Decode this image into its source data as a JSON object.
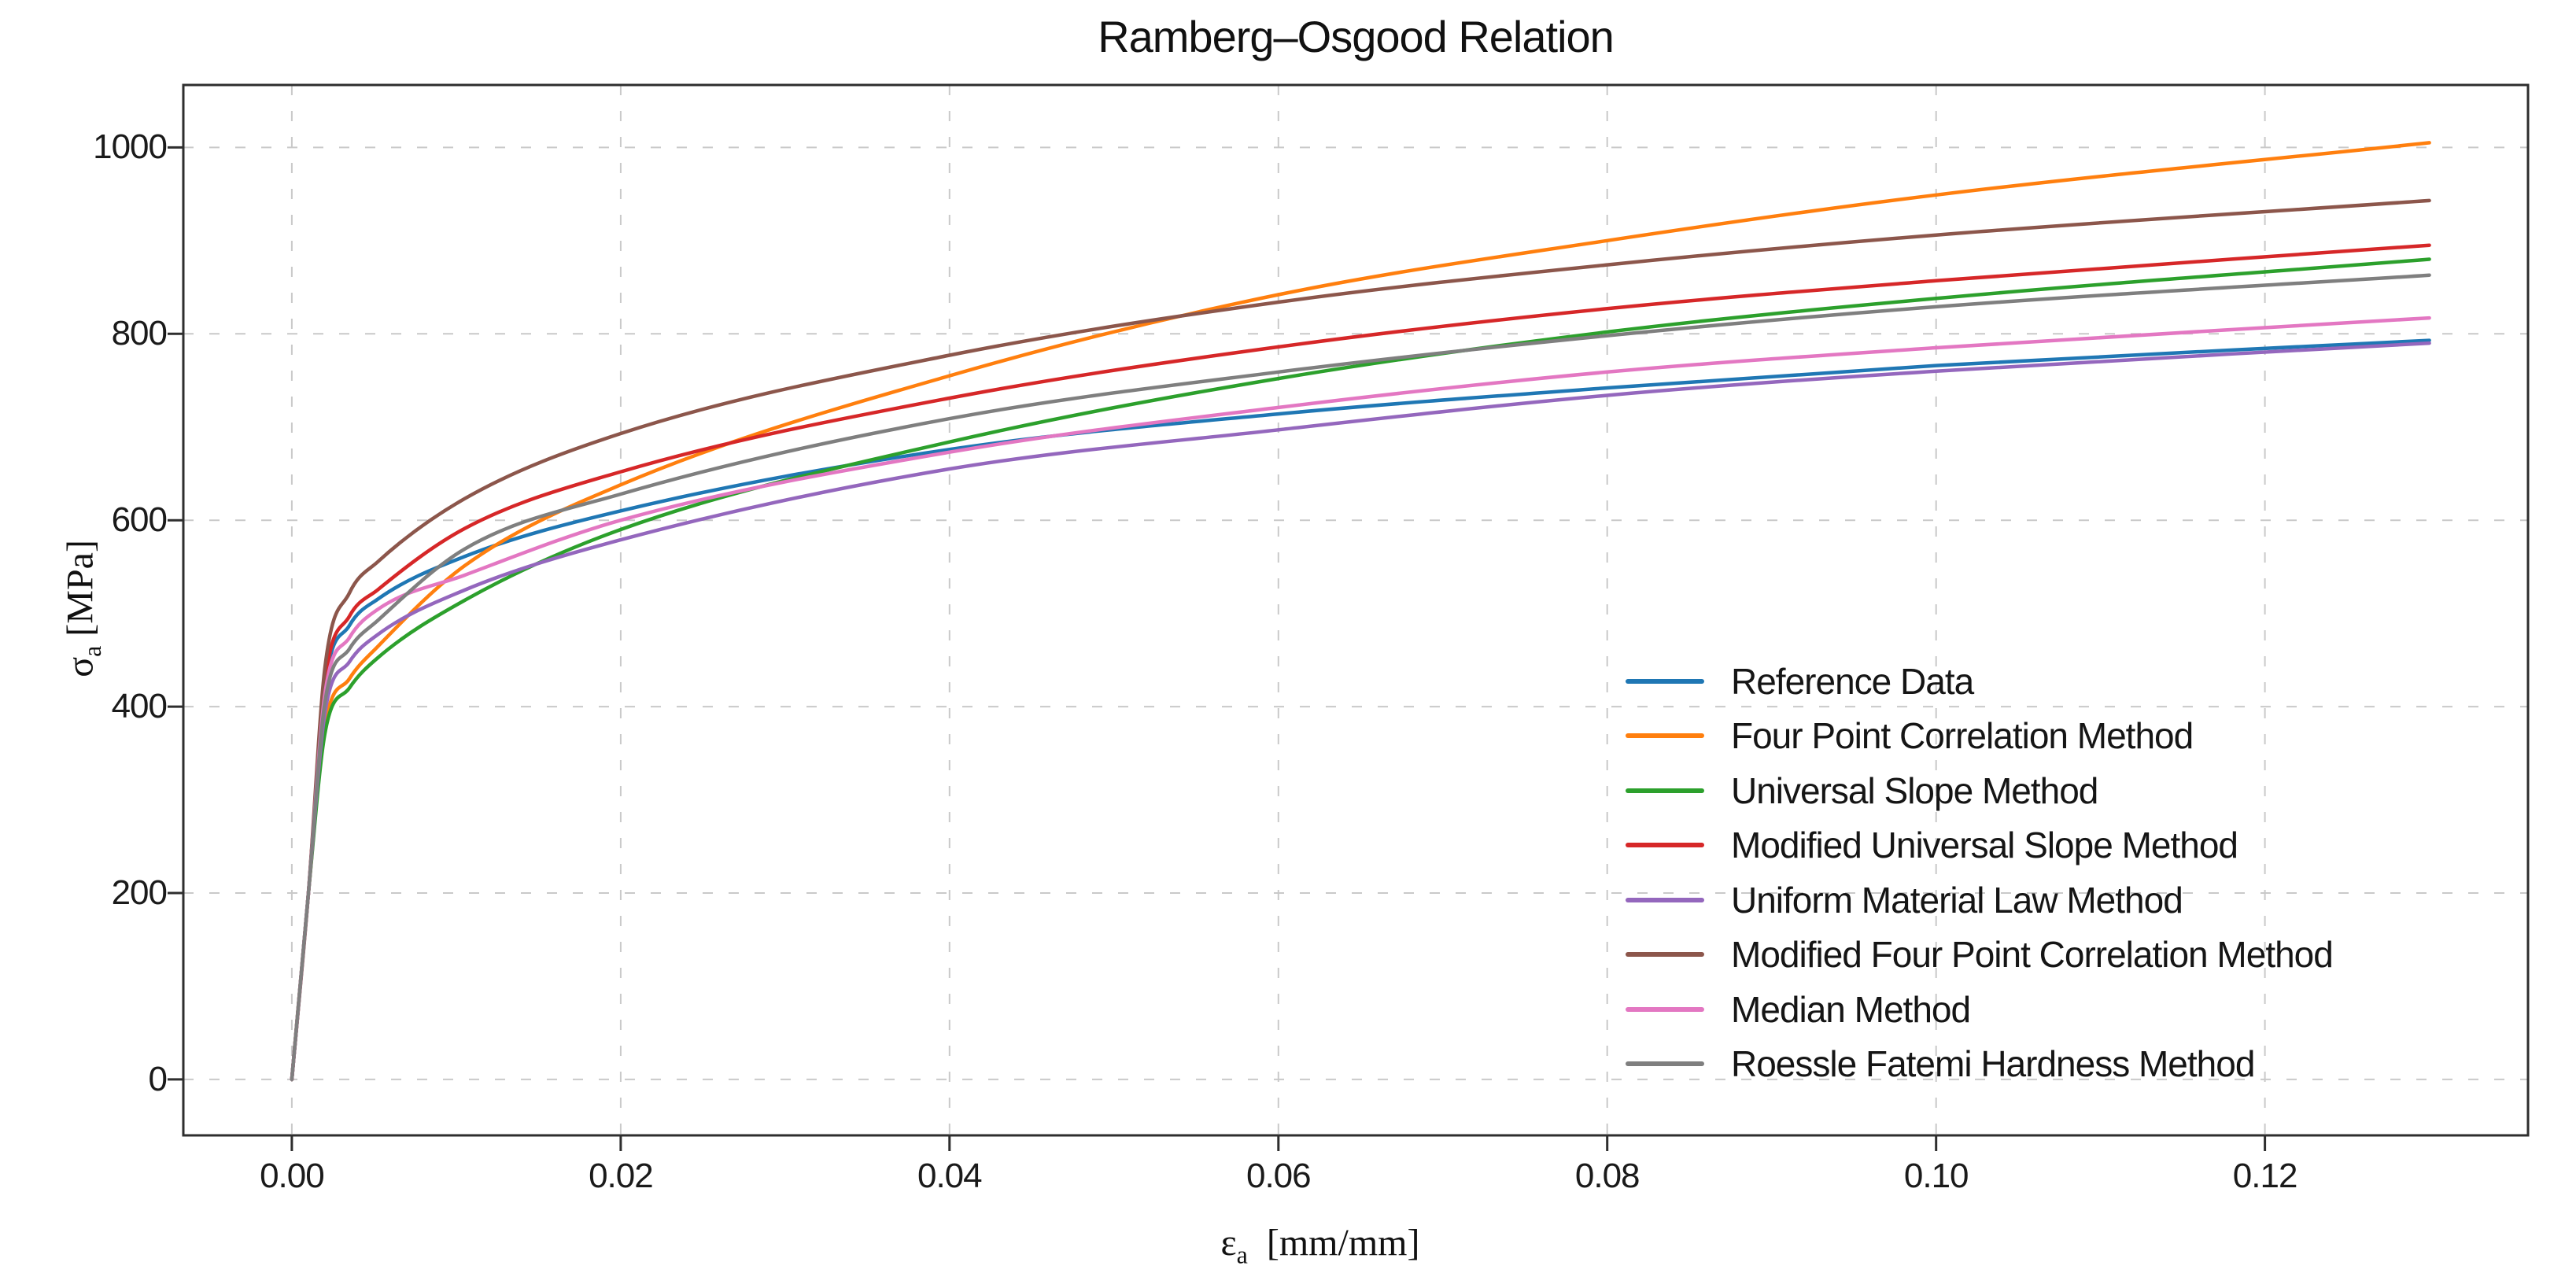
{
  "chart": {
    "title": "Ramberg–Osgood Relation",
    "ylabel": {
      "symbol": "σ",
      "sub": "a",
      "unit": "[MPa]"
    },
    "xlabel": {
      "symbol": "ε",
      "sub": "a",
      "unit": "[mm/mm]"
    }
  },
  "chart_data": {
    "type": "line",
    "title": "Ramberg–Osgood Relation",
    "xlabel": "epsilon_a [mm/mm]",
    "ylabel": "sigma_a [MPa]",
    "grid": true,
    "legend_position": "center right inside, frameless",
    "xlim": [
      -0.0066,
      0.136
    ],
    "ylim": [
      -60,
      1067
    ],
    "x_ticks": [
      0.0,
      0.02,
      0.04,
      0.06,
      0.08,
      0.1,
      0.12
    ],
    "x_tick_labels": [
      "0.00",
      "0.02",
      "0.04",
      "0.06",
      "0.08",
      "0.10",
      "0.12"
    ],
    "y_ticks": [
      0,
      200,
      400,
      600,
      800,
      1000
    ],
    "y_tick_labels": [
      "0",
      "200",
      "400",
      "600",
      "800",
      "1000"
    ],
    "grid_color": "#c9c9c9",
    "frame_color": "#2e2e2e",
    "x": [
      0,
      0.001,
      0.002,
      0.0035,
      0.0052,
      0.0105,
      0.02,
      0.04,
      0.06,
      0.08,
      0.1,
      0.13
    ],
    "series": [
      {
        "name": "Reference Data",
        "color": "#1f77b4",
        "values": [
          0,
          198,
          420,
          487,
          515,
          561,
          610,
          676,
          714,
          742,
          766,
          793
        ]
      },
      {
        "name": "Four Point Correlation Method",
        "color": "#ff7f0e",
        "values": [
          0,
          198,
          378,
          430,
          464,
          551,
          638,
          755,
          842,
          900,
          949,
          1005
        ]
      },
      {
        "name": "Universal Slope Method",
        "color": "#2ca02c",
        "values": [
          0,
          198,
          370,
          420,
          452,
          514,
          590,
          684,
          752,
          802,
          838,
          880
        ]
      },
      {
        "name": "Modified Universal Slope Method",
        "color": "#d62728",
        "values": [
          0,
          198,
          425,
          497,
          525,
          591,
          652,
          731,
          786,
          827,
          857,
          895
        ]
      },
      {
        "name": "Uniform Material Law Method",
        "color": "#9467bd",
        "values": [
          0,
          198,
          392,
          448,
          477,
          525,
          579,
          655,
          697,
          734,
          760,
          790
        ]
      },
      {
        "name": "Modified Four Point Correlation Method",
        "color": "#8c564b",
        "values": [
          0,
          198,
          440,
          522,
          555,
          623,
          693,
          777,
          834,
          874,
          906,
          943
        ]
      },
      {
        "name": "Median Method",
        "color": "#e377c2",
        "values": [
          0,
          198,
          412,
          474,
          504,
          541,
          600,
          673,
          721,
          759,
          785,
          817
        ]
      },
      {
        "name": "Roessle Fatemi Hardness Method",
        "color": "#7f7f7f",
        "values": [
          0,
          198,
          403,
          462,
          492,
          569,
          628,
          709,
          759,
          798,
          829,
          863
        ]
      }
    ]
  }
}
